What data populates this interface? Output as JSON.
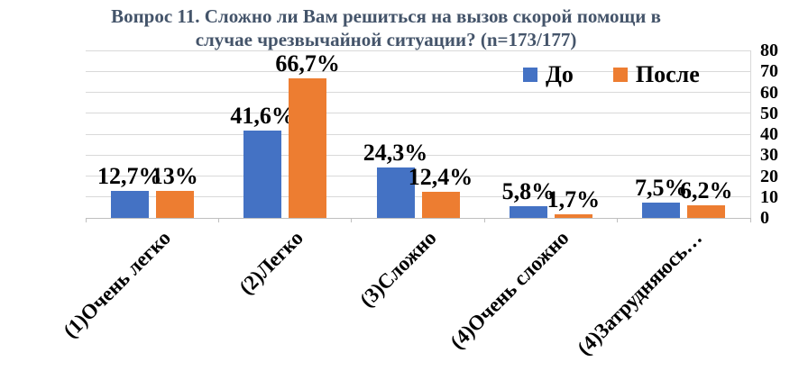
{
  "chart_data": {
    "type": "bar",
    "title": "Вопрос 11. Сложно ли Вам решиться на вызов скорой помощи в случае чрезвычайной ситуации? (n=173/177)",
    "title_lines": [
      "Вопрос 11. Сложно ли Вам решиться на вызов скорой помощи в",
      "случае чрезвычайной ситуации? (n=173/177)"
    ],
    "categories": [
      "(1)Очень легко",
      "(2)Легко",
      "(3)Сложно",
      "(4)Очень сложно",
      "(4)Затрудняюсь…"
    ],
    "series": [
      {
        "name": "До",
        "color": "#4472C4",
        "values": [
          12.7,
          41.6,
          24.3,
          5.8,
          7.5
        ],
        "data_labels": [
          "12,7%",
          "41,6%",
          "24,3%",
          "5,8%",
          "7,5%"
        ]
      },
      {
        "name": "После",
        "color": "#ED7D31",
        "values": [
          13,
          66.7,
          12.4,
          1.7,
          6.2
        ],
        "data_labels": [
          "13%",
          "66,7%",
          "12,4%",
          "1,7%",
          "6,2%"
        ]
      }
    ],
    "xlabel": "",
    "ylabel": "",
    "ylim": [
      0,
      80
    ],
    "yticks": [
      0,
      10,
      20,
      30,
      40,
      50,
      60,
      70,
      80
    ],
    "grid": true,
    "legend_position": "top-right",
    "grid_color": "#D9D9D9",
    "axis_color": "#BFBFBF",
    "title_color": "#44546A",
    "label_color": "#000000"
  }
}
